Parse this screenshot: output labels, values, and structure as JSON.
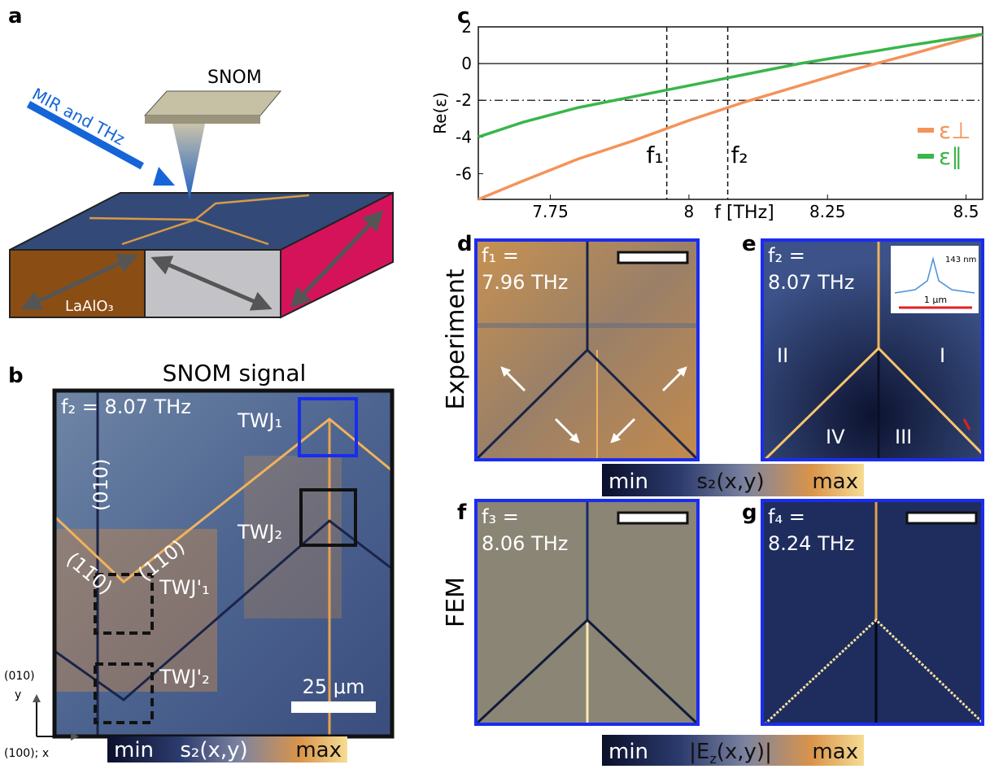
{
  "panel_labels": [
    "a",
    "b",
    "c",
    "d",
    "e",
    "f",
    "g"
  ],
  "panel_a": {
    "tip_label": "SNOM",
    "beam_label": "MIR and THz",
    "substrate_label": "LaAlO₃"
  },
  "panel_b": {
    "title": "SNOM signal",
    "frequency": "f₂ = 8.07 THz",
    "junctions": [
      "TWJ₁",
      "TWJ₂",
      "TWJ'₁",
      "TWJ'₂"
    ],
    "walls": [
      "(010)",
      "(11̄0)",
      "(110)"
    ],
    "scale_bar": "25 μm",
    "axes": [
      "(010)",
      "y",
      "(100); x"
    ],
    "colorbar": {
      "min": "min",
      "label": "s₂(x,y)",
      "max": "max"
    }
  },
  "chart_data": {
    "type": "line",
    "xlabel": "f [THz]",
    "ylabel": "Re(ε)",
    "x": [
      7.62,
      7.7,
      7.8,
      7.9,
      8.0,
      8.1,
      8.2,
      8.3,
      8.4,
      8.53
    ],
    "series": [
      {
        "name": "ε⊥",
        "color": "#f4935a",
        "values": [
          -7.4,
          -6.4,
          -5.2,
          -4.2,
          -3.1,
          -2.1,
          -1.2,
          -0.3,
          0.5,
          1.6
        ]
      },
      {
        "name": "ε∥",
        "color": "#3ab54a",
        "values": [
          -4.0,
          -3.2,
          -2.4,
          -1.8,
          -1.2,
          -0.6,
          0.0,
          0.5,
          1.0,
          1.6
        ]
      }
    ],
    "xlim": [
      7.62,
      8.53
    ],
    "ylim": [
      -7.4,
      2
    ],
    "xticks": [
      7.75,
      8,
      8.25,
      8.5
    ],
    "yticks": [
      2,
      0,
      -2,
      -4,
      -6
    ],
    "vlines": [
      {
        "x": 7.96,
        "label": "f₁"
      },
      {
        "x": 8.07,
        "label": "f₂"
      }
    ],
    "hlines": [
      {
        "y": 0,
        "style": "solid"
      },
      {
        "y": -2,
        "style": "dashdot"
      }
    ],
    "legend": "lower right"
  },
  "row_labels": [
    "Experiment",
    "FEM"
  ],
  "panel_d": {
    "frequency": [
      "f₁ =",
      "7.96 THz"
    ]
  },
  "panel_e": {
    "frequency": [
      "f₂ =",
      "8.07 THz"
    ],
    "domains": [
      "II",
      "I",
      "IV",
      "III"
    ],
    "inset": [
      "143 nm",
      "1 μm"
    ]
  },
  "panel_f": {
    "frequency": [
      "f₃ =",
      "8.06 THz"
    ]
  },
  "panel_g": {
    "frequency": [
      "f₄ =",
      "8.24 THz"
    ]
  },
  "colorbar_experiment": {
    "min": "min",
    "label": "s₂(x,y)",
    "max": "max"
  },
  "colorbar_fem": {
    "min": "min",
    "label": [
      "|E",
      "z",
      "(x,y)|"
    ],
    "max": "max"
  }
}
